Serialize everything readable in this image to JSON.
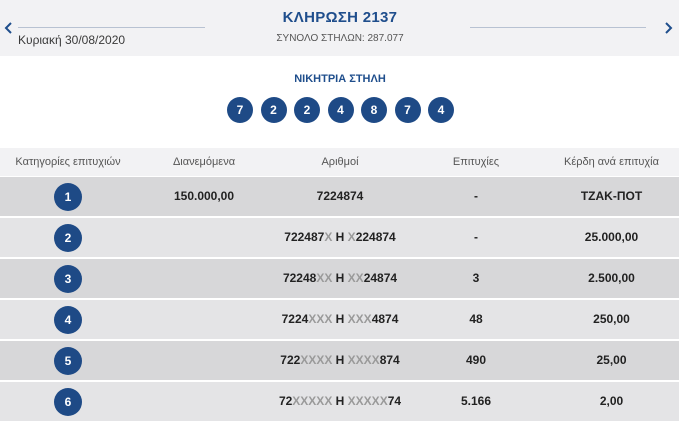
{
  "header": {
    "date": "Κυριακή 30/08/2020",
    "title": "ΚΛΗΡΩΣΗ 2137",
    "total_columns": "ΣΥΝΟΛΟ ΣΤΗΛΩΝ: 287.077",
    "prev_icon": "chevron-left-icon",
    "next_icon": "chevron-right-icon"
  },
  "winning": {
    "title": "ΝΙΚΗΤΡΙΑ ΣΤΗΛΗ",
    "numbers": [
      "7",
      "2",
      "2",
      "4",
      "8",
      "7",
      "4"
    ]
  },
  "table": {
    "headers": [
      "Κατηγορίες επιτυχιών",
      "Διανεμόμενα",
      "Αριθμοί",
      "Επιτυχίες",
      "Κέρδη ανά επιτυχία"
    ],
    "rows": [
      {
        "category": "1",
        "distributed": "150.000,00",
        "num_a": "7224874",
        "mask_a": "",
        "sep": "",
        "mask_b": "",
        "num_b": "",
        "winners": "-",
        "prize": "ΤΖΑΚ-ΠΟΤ"
      },
      {
        "category": "2",
        "distributed": "",
        "num_a": "722487",
        "mask_a": "X",
        "sep": " Η ",
        "mask_b": "X",
        "num_b": "224874",
        "winners": "-",
        "prize": "25.000,00"
      },
      {
        "category": "3",
        "distributed": "",
        "num_a": "72248",
        "mask_a": "XX",
        "sep": " Η ",
        "mask_b": "XX",
        "num_b": "24874",
        "winners": "3",
        "prize": "2.500,00"
      },
      {
        "category": "4",
        "distributed": "",
        "num_a": "7224",
        "mask_a": "XXX",
        "sep": " Η ",
        "mask_b": "XXX",
        "num_b": "4874",
        "winners": "48",
        "prize": "250,00"
      },
      {
        "category": "5",
        "distributed": "",
        "num_a": "722",
        "mask_a": "XXXX",
        "sep": " Η ",
        "mask_b": "XXXX",
        "num_b": "874",
        "winners": "490",
        "prize": "25,00"
      },
      {
        "category": "6",
        "distributed": "",
        "num_a": "72",
        "mask_a": "XXXXX",
        "sep": " Η ",
        "mask_b": "XXXXX",
        "num_b": "74",
        "winners": "5.166",
        "prize": "2,00"
      }
    ]
  },
  "colors": {
    "accent": "#1e4a86",
    "title": "#1f4e8c",
    "mask_gray": "#9a9a9a"
  }
}
